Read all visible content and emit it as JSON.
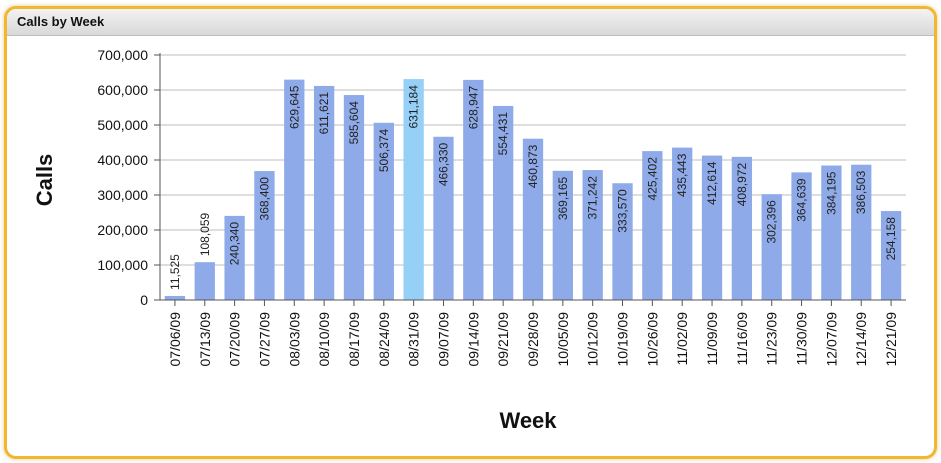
{
  "panel": {
    "title": "Calls by Week"
  },
  "colors": {
    "bar": "#8eaae8",
    "highlight": "#96d0f7",
    "border": "#f1b72f",
    "grid": "#bdbdbd"
  },
  "chart_data": {
    "type": "bar",
    "title": "",
    "xlabel": "Week",
    "ylabel": "Calls",
    "ylim": [
      0,
      700000
    ],
    "yticks": [
      "0",
      "100,000",
      "200,000",
      "300,000",
      "400,000",
      "500,000",
      "600,000",
      "700,000"
    ],
    "yticks_values": [
      0,
      100000,
      200000,
      300000,
      400000,
      500000,
      600000,
      700000
    ],
    "grid": true,
    "highlight_category": "08/31/09",
    "categories": [
      "07/06/09",
      "07/13/09",
      "07/20/09",
      "07/27/09",
      "08/03/09",
      "08/10/09",
      "08/17/09",
      "08/24/09",
      "08/31/09",
      "09/07/09",
      "09/14/09",
      "09/21/09",
      "09/28/09",
      "10/05/09",
      "10/12/09",
      "10/19/09",
      "10/26/09",
      "11/02/09",
      "11/09/09",
      "11/16/09",
      "11/23/09",
      "11/30/09",
      "12/07/09",
      "12/14/09",
      "12/21/09"
    ],
    "values": [
      11525,
      108059,
      240340,
      368400,
      629645,
      611621,
      585604,
      506374,
      631184,
      466330,
      628947,
      554431,
      460873,
      369165,
      371242,
      333570,
      425402,
      435443,
      412614,
      408972,
      302396,
      364639,
      384195,
      386503,
      254158
    ],
    "labels": [
      "11,525",
      "108,059",
      "240,340",
      "368,400",
      "629,645",
      "611,621",
      "585,604",
      "506,374",
      "631,184",
      "466,330",
      "628,947",
      "554,431",
      "460,873",
      "369,165",
      "371,242",
      "333,570",
      "425,402",
      "435,443",
      "412,614",
      "408,972",
      "302,396",
      "364,639",
      "384,195",
      "386,503",
      "254,158"
    ]
  }
}
